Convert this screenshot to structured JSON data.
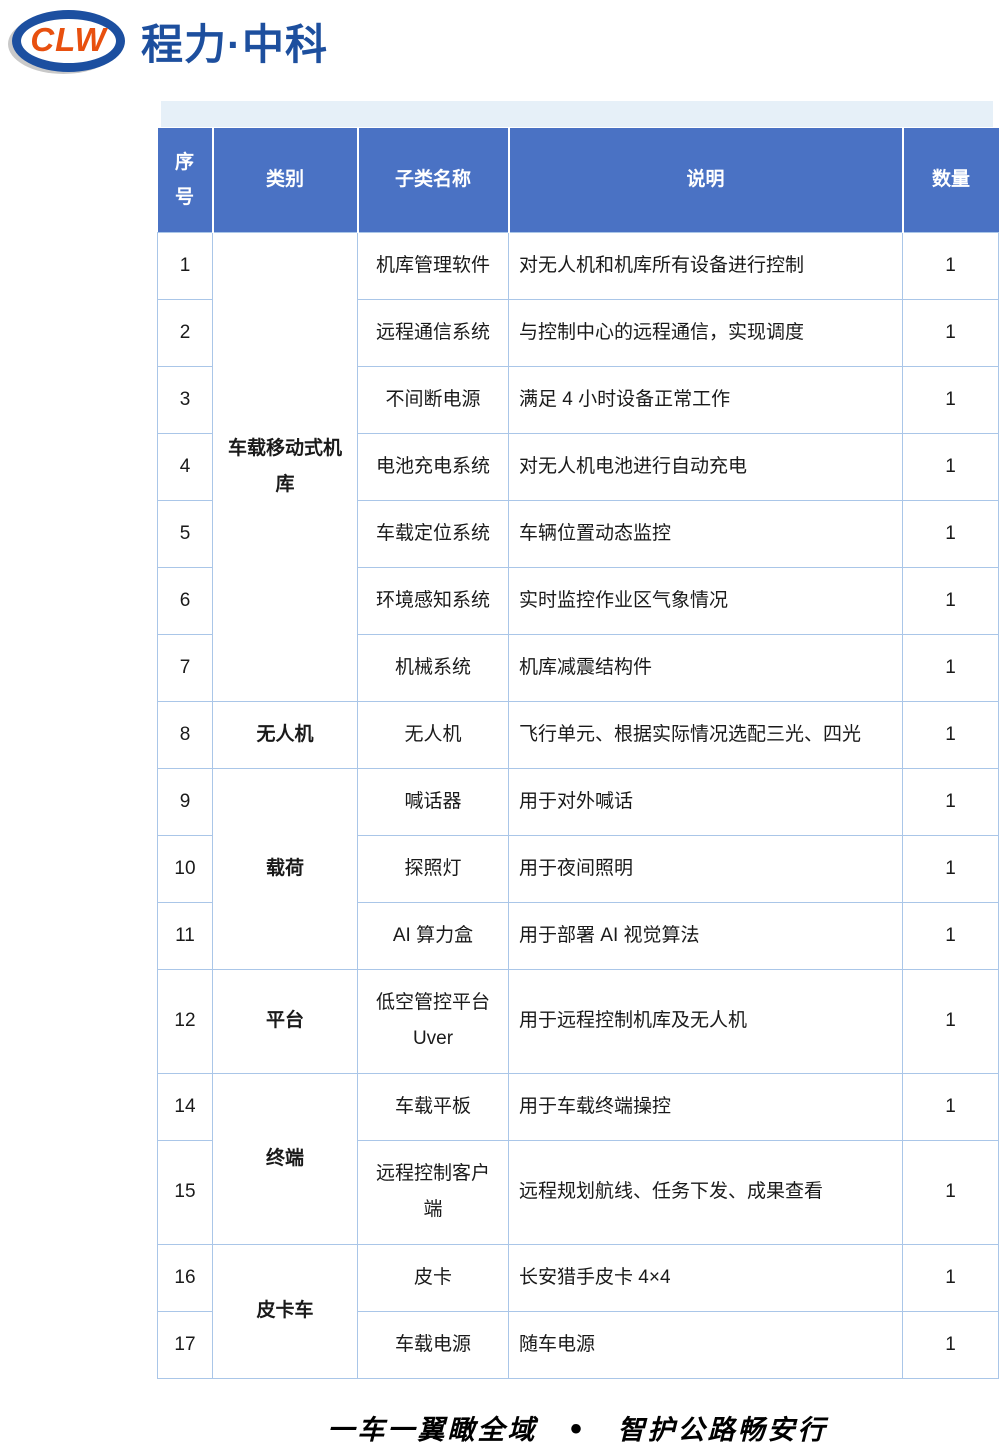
{
  "logo": {
    "badge": "CLW",
    "brand": "程力·中科"
  },
  "table": {
    "headers": [
      "序号",
      "类别",
      "子类名称",
      "说明",
      "数量"
    ],
    "rows": [
      {
        "no": "1",
        "category": "车载移动式机库",
        "cat_span": 7,
        "subclass": "机库管理软件",
        "desc": "对无人机和机库所有设备进行控制",
        "qty": "1"
      },
      {
        "no": "2",
        "subclass": "远程通信系统",
        "desc": "与控制中心的远程通信，实现调度",
        "qty": "1"
      },
      {
        "no": "3",
        "subclass": "不间断电源",
        "desc": "满足 4 小时设备正常工作",
        "qty": "1"
      },
      {
        "no": "4",
        "subclass": "电池充电系统",
        "desc": "对无人机电池进行自动充电",
        "qty": "1"
      },
      {
        "no": "5",
        "subclass": "车载定位系统",
        "desc": "车辆位置动态监控",
        "qty": "1"
      },
      {
        "no": "6",
        "subclass": "环境感知系统",
        "desc": "实时监控作业区气象情况",
        "qty": "1"
      },
      {
        "no": "7",
        "subclass": "机械系统",
        "desc": "机库减震结构件",
        "qty": "1"
      },
      {
        "no": "8",
        "category": "无人机",
        "cat_span": 1,
        "subclass": "无人机",
        "desc": "飞行单元、根据实际情况选配三光、四光",
        "qty": "1"
      },
      {
        "no": "9",
        "category": "载荷",
        "cat_span": 3,
        "subclass": "喊话器",
        "desc": "用于对外喊话",
        "qty": "1"
      },
      {
        "no": "10",
        "subclass": "探照灯",
        "desc": "用于夜间照明",
        "qty": "1"
      },
      {
        "no": "11",
        "subclass": "AI 算力盒",
        "desc": "用于部署 AI 视觉算法",
        "qty": "1"
      },
      {
        "no": "12",
        "category": "平台",
        "cat_span": 1,
        "subclass": "低空管控平台 Uver",
        "desc": "用于远程控制机库及无人机",
        "qty": "1",
        "tall": true
      },
      {
        "no": "14",
        "category": "终端",
        "cat_span": 2,
        "subclass": "车载平板",
        "desc": "用于车载终端操控",
        "qty": "1"
      },
      {
        "no": "15",
        "subclass": "远程控制客户端",
        "desc": "远程规划航线、任务下发、成果查看",
        "qty": "1",
        "tall": true
      },
      {
        "no": "16",
        "category": "皮卡车",
        "cat_span": 2,
        "subclass": "皮卡",
        "desc": "长安猎手皮卡 4×4",
        "qty": "1"
      },
      {
        "no": "17",
        "subclass": "车载电源",
        "desc": "随车电源",
        "qty": "1"
      }
    ]
  },
  "footer": {
    "slogan": "一车一翼瞰全域　•　智护公路畅安行"
  },
  "colors": {
    "header_bg": "#4a72c4",
    "cell_border": "#aac6e8",
    "banner_bg": "#e6f0f8",
    "brand_blue": "#1d4f9e",
    "logo_ring_blue": "#1c4fa0",
    "logo_orange": "#e8500f"
  }
}
